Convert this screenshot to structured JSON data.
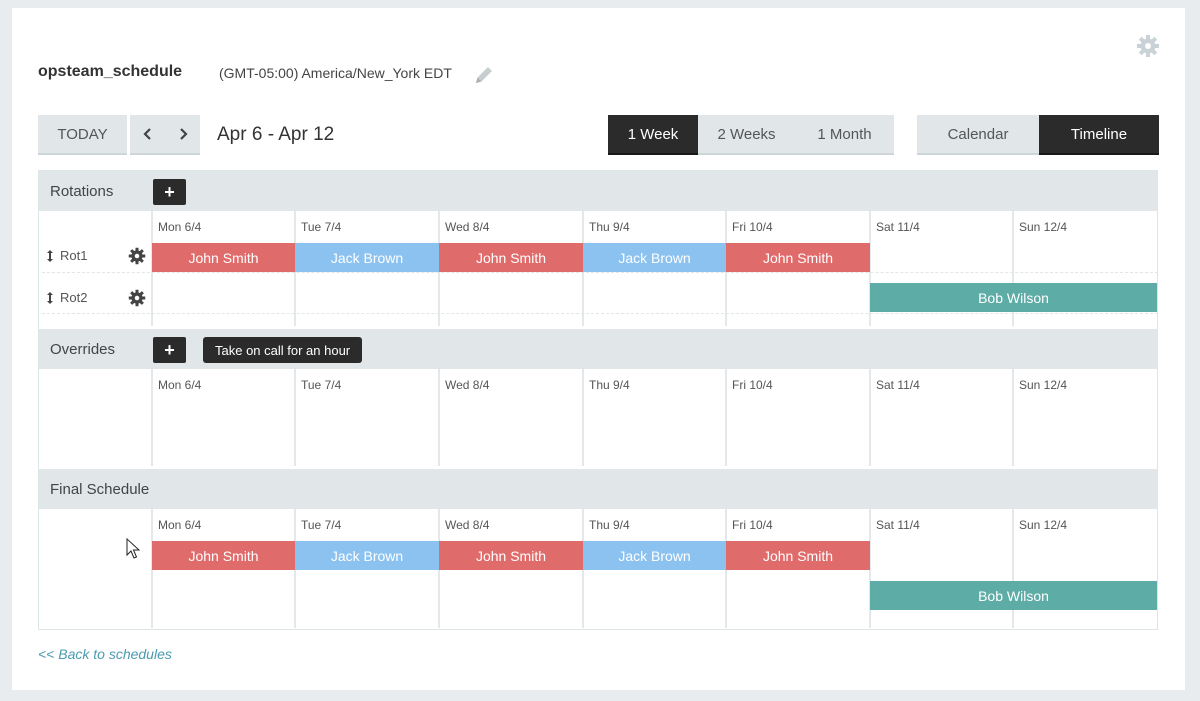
{
  "header": {
    "title": "opsteam_schedule",
    "timezone": "(GMT-05:00) America/New_York EDT"
  },
  "nav": {
    "today_label": "TODAY",
    "prev_icon": "chevron-left-icon",
    "next_icon": "chevron-right-icon",
    "date_range": "Apr 6 - Apr 12"
  },
  "range_toggle": [
    {
      "label": "1 Week",
      "active": true
    },
    {
      "label": "2 Weeks",
      "active": false
    },
    {
      "label": "1 Month",
      "active": false
    }
  ],
  "view_toggle": [
    {
      "label": "Calendar",
      "active": false
    },
    {
      "label": "Timeline",
      "active": true
    }
  ],
  "days": [
    "Mon 6/4",
    "Tue 7/4",
    "Wed 8/4",
    "Thu 9/4",
    "Fri 10/4",
    "Sat 11/4",
    "Sun 12/4"
  ],
  "rotations": {
    "label": "Rotations",
    "add_label": "+",
    "items": [
      {
        "name": "Rot1",
        "shifts": [
          {
            "person": "John Smith",
            "color": "#e06b6b"
          },
          {
            "person": "Jack Brown",
            "color": "#8cc2ef"
          },
          {
            "person": "John Smith",
            "color": "#e06b6b"
          },
          {
            "person": "Jack Brown",
            "color": "#8cc2ef"
          },
          {
            "person": "John Smith",
            "color": "#e06b6b"
          }
        ]
      },
      {
        "name": "Rot2",
        "shifts": [
          {
            "person": "Bob Wilson",
            "color": "#5eaca6"
          }
        ]
      }
    ]
  },
  "overrides": {
    "label": "Overrides",
    "add_label": "+",
    "tooltip": "Take on call for an hour"
  },
  "final_schedule": {
    "label": "Final Schedule",
    "shifts": [
      {
        "person": "John Smith"
      },
      {
        "person": "Jack Brown"
      },
      {
        "person": "John Smith"
      },
      {
        "person": "Jack Brown"
      },
      {
        "person": "John Smith"
      },
      {
        "person": "Bob Wilson"
      }
    ]
  },
  "footer": {
    "back_link": "<< Back to schedules"
  }
}
